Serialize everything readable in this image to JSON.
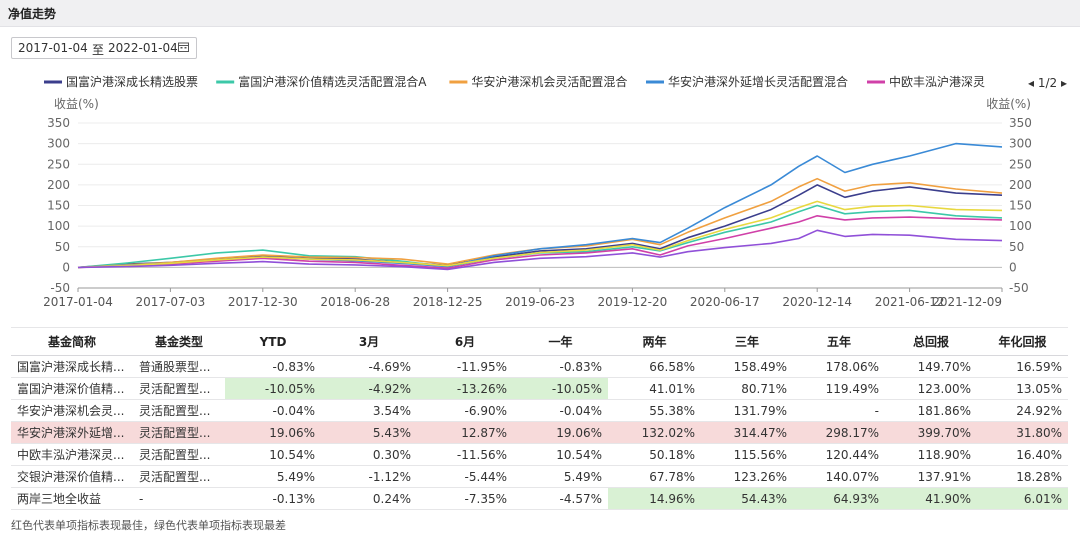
{
  "header": {
    "title": "净值走势"
  },
  "date_range": {
    "start": "2017-01-04",
    "sep": "至",
    "end": "2022-01-04",
    "icon": "calendar-icon"
  },
  "legend_pager": {
    "prev": "◂",
    "page": "1/2",
    "next": "▸"
  },
  "chart_data": {
    "type": "line",
    "ylabel_left": "收益(%)",
    "ylabel_right": "收益(%)",
    "ylim": [
      -50,
      350
    ],
    "yticks": [
      "350",
      "300",
      "250",
      "200",
      "150",
      "100",
      "50",
      "0",
      "-50"
    ],
    "x_ticks": [
      "2017-01-04",
      "2017-07-03",
      "2017-12-30",
      "2018-06-28",
      "2018-12-25",
      "2019-06-23",
      "2019-12-20",
      "2020-06-17",
      "2020-12-14",
      "2021-06-12",
      "2021-12-09"
    ],
    "x_tick_pos": [
      0,
      0.1,
      0.2,
      0.3,
      0.4,
      0.5,
      0.6,
      0.7,
      0.8,
      0.9,
      1.0
    ],
    "grid": true,
    "legend_position": "top",
    "series": [
      {
        "name": "国富沪港深成长精选股票",
        "color": "#3b3e8c",
        "x": [
          0,
          0.05,
          0.1,
          0.15,
          0.2,
          0.25,
          0.3,
          0.35,
          0.4,
          0.45,
          0.5,
          0.55,
          0.6,
          0.63,
          0.66,
          0.7,
          0.75,
          0.78,
          0.8,
          0.83,
          0.86,
          0.9,
          0.95,
          1.0
        ],
        "y": [
          0,
          8,
          12,
          20,
          28,
          24,
          20,
          12,
          5,
          25,
          40,
          45,
          58,
          45,
          72,
          100,
          140,
          175,
          200,
          170,
          185,
          195,
          180,
          175
        ]
      },
      {
        "name": "富国沪港深价值精选灵活配置混合A",
        "color": "#3cc8a8",
        "x": [
          0,
          0.05,
          0.1,
          0.15,
          0.2,
          0.25,
          0.3,
          0.35,
          0.4,
          0.45,
          0.5,
          0.55,
          0.6,
          0.63,
          0.66,
          0.7,
          0.75,
          0.78,
          0.8,
          0.83,
          0.86,
          0.9,
          0.95,
          1.0
        ],
        "y": [
          0,
          10,
          22,
          35,
          42,
          28,
          26,
          15,
          2,
          22,
          35,
          38,
          50,
          40,
          60,
          85,
          110,
          135,
          150,
          130,
          135,
          138,
          125,
          120
        ]
      },
      {
        "name": "华安沪港深机会灵活配置混合",
        "color": "#f0a040",
        "x": [
          0,
          0.05,
          0.1,
          0.15,
          0.2,
          0.25,
          0.3,
          0.35,
          0.4,
          0.45,
          0.5,
          0.55,
          0.6,
          0.63,
          0.66,
          0.7,
          0.75,
          0.78,
          0.8,
          0.83,
          0.86,
          0.9,
          0.95,
          1.0
        ],
        "y": [
          0,
          6,
          12,
          22,
          30,
          25,
          24,
          20,
          8,
          30,
          45,
          52,
          68,
          55,
          85,
          120,
          160,
          195,
          215,
          185,
          200,
          205,
          190,
          180
        ]
      },
      {
        "name": "华安沪港深外延增长灵活配置混合",
        "color": "#3a8ad6",
        "x": [
          0,
          0.05,
          0.1,
          0.15,
          0.2,
          0.25,
          0.3,
          0.35,
          0.4,
          0.45,
          0.5,
          0.55,
          0.6,
          0.63,
          0.66,
          0.7,
          0.75,
          0.78,
          0.8,
          0.83,
          0.86,
          0.9,
          0.95,
          1.0
        ],
        "y": [
          0,
          5,
          10,
          18,
          25,
          20,
          16,
          10,
          2,
          28,
          45,
          55,
          70,
          60,
          95,
          145,
          200,
          245,
          270,
          230,
          250,
          270,
          300,
          292
        ]
      },
      {
        "name": "中欧丰泓沪港深灵",
        "color": "#d040a8",
        "x": [
          0,
          0.05,
          0.1,
          0.15,
          0.2,
          0.25,
          0.3,
          0.35,
          0.4,
          0.45,
          0.5,
          0.55,
          0.6,
          0.63,
          0.66,
          0.7,
          0.75,
          0.78,
          0.8,
          0.83,
          0.86,
          0.9,
          0.95,
          1.0
        ],
        "y": [
          0,
          3,
          8,
          15,
          22,
          15,
          12,
          5,
          -2,
          18,
          30,
          35,
          45,
          30,
          52,
          70,
          95,
          110,
          125,
          115,
          120,
          122,
          118,
          115
        ]
      },
      {
        "name": "",
        "color": "#e8d840",
        "x": [
          0,
          0.05,
          0.1,
          0.15,
          0.2,
          0.25,
          0.3,
          0.35,
          0.4,
          0.45,
          0.5,
          0.55,
          0.6,
          0.63,
          0.66,
          0.7,
          0.75,
          0.78,
          0.8,
          0.83,
          0.86,
          0.9,
          0.95,
          1.0
        ],
        "y": [
          0,
          4,
          10,
          18,
          25,
          20,
          18,
          12,
          4,
          22,
          36,
          42,
          55,
          42,
          65,
          92,
          120,
          145,
          160,
          140,
          148,
          150,
          140,
          138
        ]
      },
      {
        "name": "",
        "color": "#9050d8",
        "x": [
          0,
          0.05,
          0.1,
          0.15,
          0.2,
          0.25,
          0.3,
          0.35,
          0.4,
          0.45,
          0.5,
          0.55,
          0.6,
          0.63,
          0.66,
          0.7,
          0.75,
          0.78,
          0.8,
          0.83,
          0.86,
          0.9,
          0.95,
          1.0
        ],
        "y": [
          0,
          2,
          5,
          10,
          14,
          8,
          6,
          2,
          -5,
          12,
          22,
          26,
          35,
          25,
          38,
          48,
          58,
          70,
          90,
          75,
          80,
          78,
          68,
          65
        ]
      }
    ]
  },
  "table": {
    "headers": [
      "基金简称",
      "基金类型",
      "YTD",
      "3月",
      "6月",
      "一年",
      "两年",
      "三年",
      "五年",
      "总回报",
      "年化回报"
    ],
    "rows": [
      {
        "cells": [
          "国富沪港深成长精...",
          "普通股票型...",
          "-0.83%",
          "-4.69%",
          "-11.95%",
          "-0.83%",
          "66.58%",
          "158.49%",
          "178.06%",
          "149.70%",
          "16.59%"
        ],
        "hl": [
          "",
          "",
          "",
          "",
          "",
          "",
          "",
          "",
          "",
          "",
          ""
        ]
      },
      {
        "cells": [
          "富国沪港深价值精...",
          "灵活配置型...",
          "-10.05%",
          "-4.92%",
          "-13.26%",
          "-10.05%",
          "41.01%",
          "80.71%",
          "119.49%",
          "123.00%",
          "13.05%"
        ],
        "hl": [
          "",
          "",
          "g",
          "g",
          "g",
          "g",
          "",
          "",
          "",
          "",
          ""
        ]
      },
      {
        "cells": [
          "华安沪港深机会灵...",
          "灵活配置型...",
          "-0.04%",
          "3.54%",
          "-6.90%",
          "-0.04%",
          "55.38%",
          "131.79%",
          "-",
          "181.86%",
          "24.92%"
        ],
        "hl": [
          "",
          "",
          "",
          "",
          "",
          "",
          "",
          "",
          "",
          "",
          ""
        ]
      },
      {
        "cells": [
          "华安沪港深外延增...",
          "灵活配置型...",
          "19.06%",
          "5.43%",
          "12.87%",
          "19.06%",
          "132.02%",
          "314.47%",
          "298.17%",
          "399.70%",
          "31.80%"
        ],
        "hl": [
          "r",
          "r",
          "r",
          "r",
          "r",
          "r",
          "r",
          "r",
          "r",
          "r",
          "r"
        ]
      },
      {
        "cells": [
          "中欧丰泓沪港深灵...",
          "灵活配置型...",
          "10.54%",
          "0.30%",
          "-11.56%",
          "10.54%",
          "50.18%",
          "115.56%",
          "120.44%",
          "118.90%",
          "16.40%"
        ],
        "hl": [
          "",
          "",
          "",
          "",
          "",
          "",
          "",
          "",
          "",
          "",
          ""
        ]
      },
      {
        "cells": [
          "交银沪港深价值精...",
          "灵活配置型...",
          "5.49%",
          "-1.12%",
          "-5.44%",
          "5.49%",
          "67.78%",
          "123.26%",
          "140.07%",
          "137.91%",
          "18.28%"
        ],
        "hl": [
          "",
          "",
          "",
          "",
          "",
          "",
          "",
          "",
          "",
          "",
          ""
        ]
      },
      {
        "cells": [
          "两岸三地全收益",
          "-",
          "-0.13%",
          "0.24%",
          "-7.35%",
          "-4.57%",
          "14.96%",
          "54.43%",
          "64.93%",
          "41.90%",
          "6.01%"
        ],
        "hl": [
          "",
          "",
          "",
          "",
          "",
          "",
          "g",
          "g",
          "g",
          "g",
          "g"
        ]
      }
    ]
  },
  "footnote": "红色代表单项指标表现最佳，绿色代表单项指标表现最差",
  "colors": {
    "best_bg": "#f7dada",
    "worst_bg": "#d9f1d4"
  }
}
